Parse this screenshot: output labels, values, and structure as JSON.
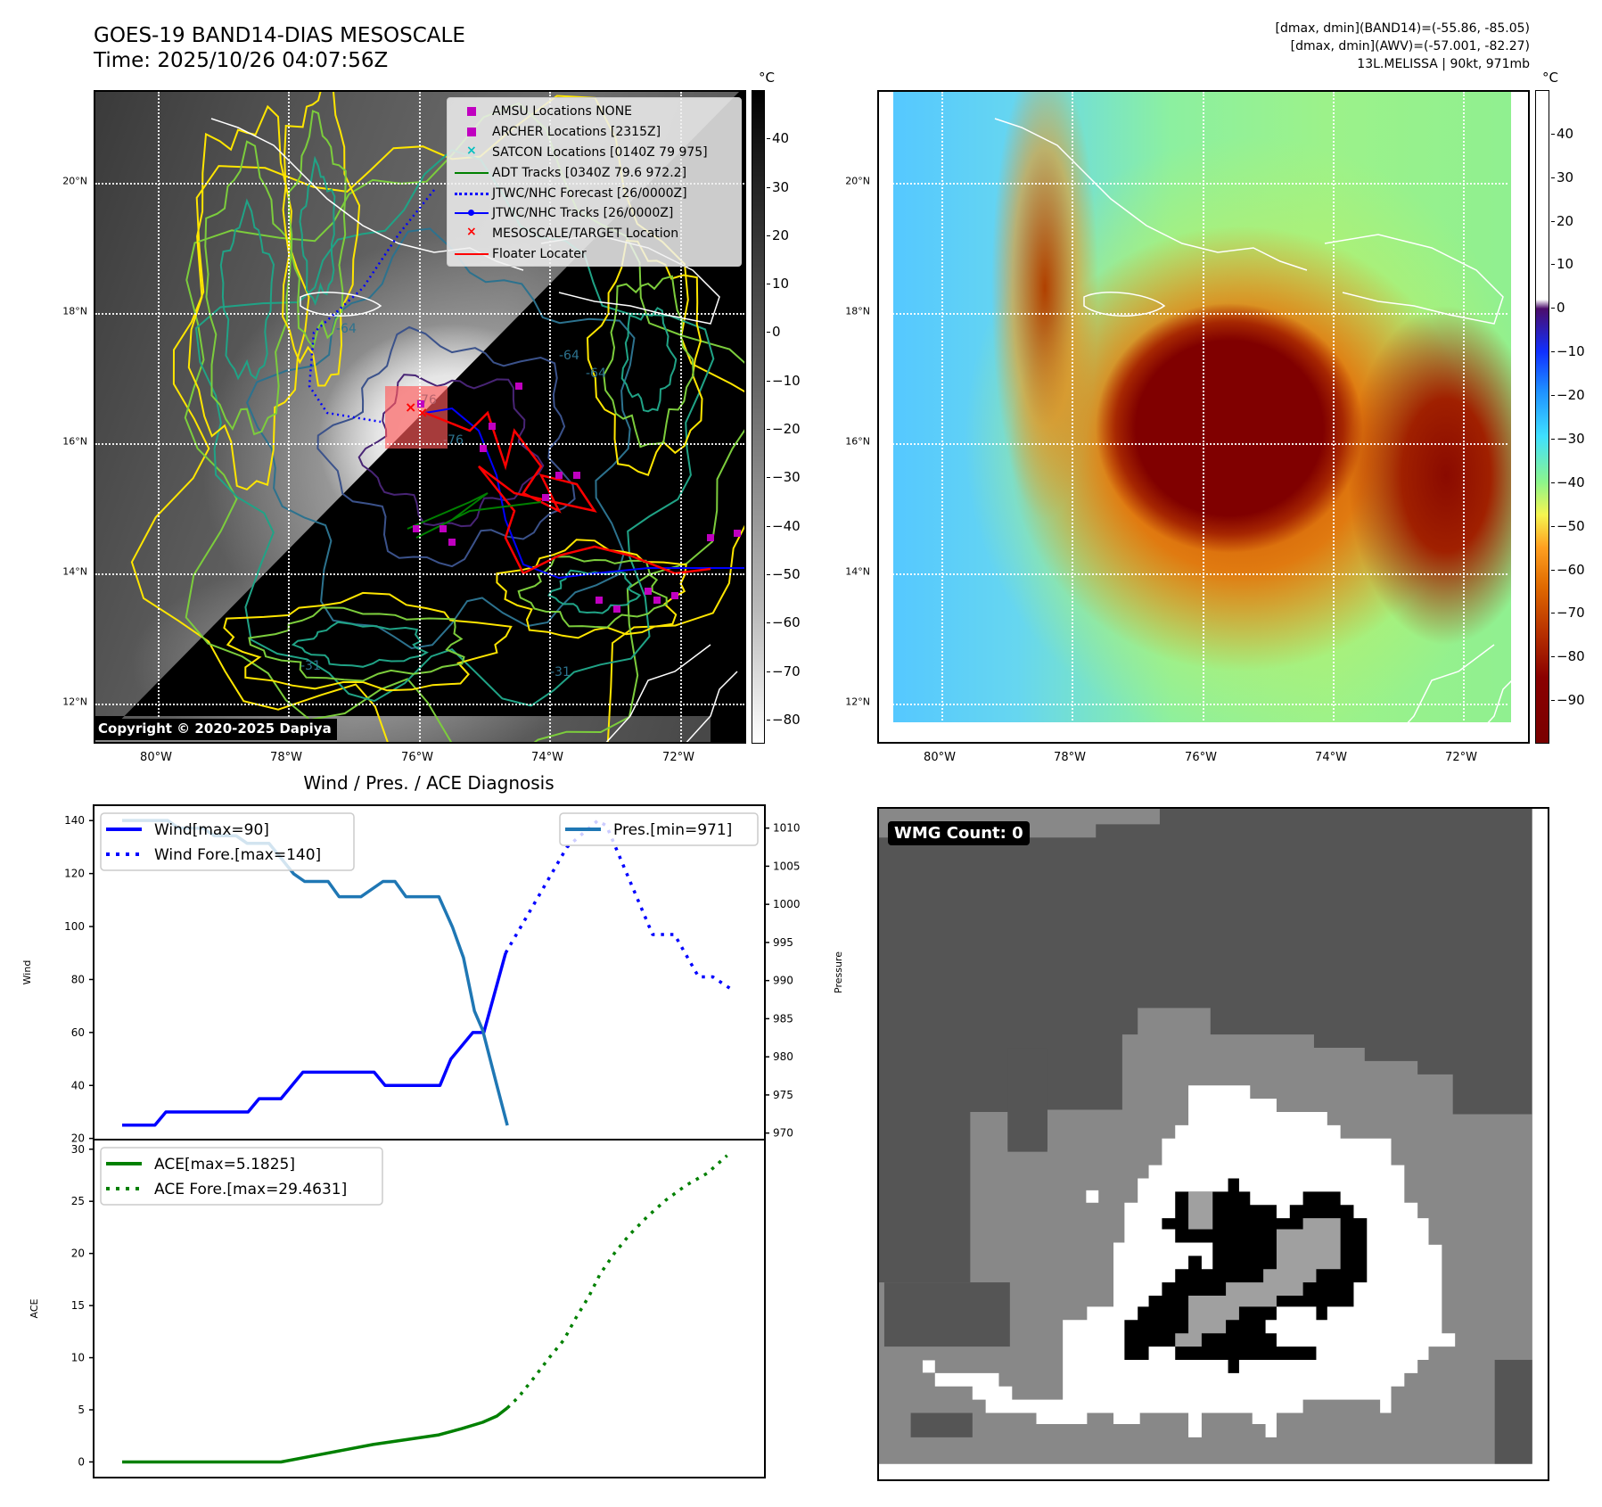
{
  "header": {
    "title": "GOES-19 BAND14-DIAS MESOSCALE",
    "time": "Time: 2025/10/26 04:07:56Z",
    "stats": [
      "[dmax, dmin](BAND14)=(-55.86, -85.05)",
      "[dmax, dmin](AWV)=(-57.001, -82.27)",
      "13L.MELISSA | 90kt, 971mb"
    ]
  },
  "map": {
    "lon_ticks": [
      "80°W",
      "78°W",
      "76°W",
      "74°W",
      "72°W"
    ],
    "lat_ticks": [
      "20°N",
      "18°N",
      "16°N",
      "14°N",
      "12°N"
    ],
    "contour_labels": [
      "-64",
      "-64",
      "-76",
      "-76",
      "-64",
      "-31",
      "-31"
    ],
    "copyright": "Copyright © 2020-2025 Dapiya",
    "legend": [
      {
        "label": "AMSU Locations NONE",
        "symbol": "square",
        "color": "#c000c0"
      },
      {
        "label": "ARCHER Locations [2315Z]",
        "symbol": "square",
        "color": "#c000c0"
      },
      {
        "label": "SATCON Locations [0140Z 79 975]",
        "symbol": "x",
        "color": "#00c0c0"
      },
      {
        "label": "ADT Tracks [0340Z 79.6 972.2]",
        "symbol": "line",
        "color": "#008000"
      },
      {
        "label": "JTWC/NHC Forecast [26/0000Z]",
        "symbol": "dotted",
        "color": "#0000ff"
      },
      {
        "label": "JTWC/NHC Tracks [26/0000Z]",
        "symbol": "line-dot",
        "color": "#0000ff"
      },
      {
        "label": "MESOSCALE/TARGET Location",
        "symbol": "x",
        "color": "#ff0000"
      },
      {
        "label": "Floater Locater",
        "symbol": "line",
        "color": "#ff0000"
      }
    ],
    "colorbar": {
      "unit": "°C",
      "ticks": [
        "40",
        "30",
        "20",
        "10",
        "0",
        "−10",
        "−20",
        "−30",
        "−40",
        "−50",
        "−60",
        "−70",
        "−80"
      ],
      "tick_values": [
        40,
        30,
        20,
        10,
        0,
        -10,
        -20,
        -30,
        -40,
        -50,
        -60,
        -70,
        -80
      ],
      "range": [
        -85,
        50
      ]
    }
  },
  "awv_map": {
    "lon_ticks": [
      "80°W",
      "78°W",
      "76°W",
      "74°W",
      "72°W"
    ],
    "lat_ticks": [
      "20°N",
      "18°N",
      "16°N",
      "14°N",
      "12°N"
    ],
    "colorbar": {
      "unit": "°C",
      "ticks": [
        "40",
        "30",
        "20",
        "10",
        "0",
        "−10",
        "−20",
        "−30",
        "−40",
        "−50",
        "−60",
        "−70",
        "−80",
        "−90"
      ],
      "tick_values": [
        40,
        30,
        20,
        10,
        0,
        -10,
        -20,
        -30,
        -40,
        -50,
        -60,
        -70,
        -80,
        -90
      ],
      "range": [
        -100,
        50
      ]
    }
  },
  "wmg": {
    "label": "WMG Count: 0"
  },
  "chart_data": [
    {
      "type": "line",
      "title": "Wind / Pres. / ACE Diagnosis",
      "ylabel": "Wind",
      "y2label": "Pressure",
      "xlim": [
        -2.6,
        58.65
      ],
      "ylim": [
        19.55,
        145.8
      ],
      "y2lim": [
        969.14,
        1013.0
      ],
      "yticks": [
        20,
        40,
        60,
        80,
        100,
        120,
        140
      ],
      "y2ticks": [
        970,
        975,
        980,
        985,
        990,
        995,
        1000,
        1005,
        1010
      ],
      "series": [
        {
          "name": "Wind[max=90]",
          "axis": "left",
          "style": "solid",
          "color": "#0000ff",
          "x": [
            0,
            3,
            4,
            11.5,
            12.5,
            14.5,
            16.5,
            23,
            24,
            29,
            30,
            32,
            33,
            35
          ],
          "y": [
            25,
            25,
            30,
            30,
            35,
            35,
            45,
            45,
            40,
            40,
            50,
            60,
            60,
            90
          ]
        },
        {
          "name": "Wind Fore.[max=140]",
          "axis": "left",
          "style": "dotted",
          "color": "#0000ff",
          "x": [
            35,
            40.6,
            43.4,
            44.2,
            48.4,
            50.4,
            52.6,
            53.9,
            55.7
          ],
          "y": [
            90,
            130,
            140,
            138,
            97,
            97,
            81,
            81,
            76
          ]
        },
        {
          "name": "Pres.[min=971]",
          "axis": "right",
          "style": "solid",
          "color": "#1f77b4",
          "x": [
            0,
            4.15,
            5.15,
            7.4,
            8.4,
            10.4,
            11.4,
            13.4,
            15.65,
            16.65,
            18.8,
            19.8,
            21.8,
            23.8,
            24.9,
            25.9,
            28.9,
            30.15,
            31.15,
            32.15,
            32.9,
            34.15,
            35.15
          ],
          "y": [
            1011,
            1011,
            1010,
            1010,
            1009,
            1009,
            1008,
            1008,
            1004,
            1003,
            1003,
            1001,
            1001,
            1003,
            1003,
            1001,
            1001,
            997,
            993,
            986,
            983.5,
            976.5,
            971
          ]
        }
      ]
    },
    {
      "type": "line",
      "ylabel": "ACE",
      "xlim": [
        -2.6,
        58.65
      ],
      "ylim": [
        -1.5,
        30.92
      ],
      "yticks": [
        0,
        5,
        10,
        15,
        20,
        25,
        30
      ],
      "series": [
        {
          "name": "ACE[max=5.1825]",
          "style": "solid",
          "color": "#008000",
          "x": [
            0,
            14.5,
            18,
            22.9,
            28.9,
            31,
            32.9,
            34.2,
            35.15
          ],
          "y": [
            0,
            0,
            0.7,
            1.67,
            2.6,
            3.2,
            3.8,
            4.4,
            5.18
          ]
        },
        {
          "name": "ACE Fore.[max=29.4631]",
          "style": "dotted",
          "color": "#008000",
          "x": [
            35.15,
            36.15,
            37.6,
            38.9,
            40.3,
            41.4,
            42.6,
            43.6,
            44.9,
            46.3,
            47.9,
            49.6,
            51.4,
            53.4,
            55.2
          ],
          "y": [
            5.18,
            6.2,
            8.1,
            9.9,
            11.7,
            13.8,
            15.9,
            18,
            20,
            21.8,
            23.5,
            25.1,
            26.5,
            27.7,
            29.4
          ]
        }
      ]
    }
  ]
}
